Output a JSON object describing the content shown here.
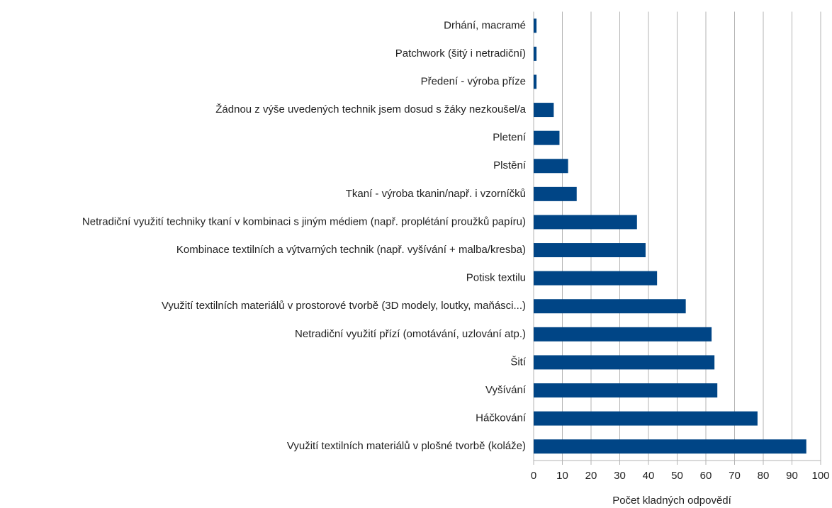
{
  "chart_data": {
    "type": "barh",
    "categories": [
      "Drhání, macramé",
      "Patchwork (šitý i netradiční)",
      "Předení - výroba příze",
      "Žádnou z výše uvedených technik jsem dosud s žáky nezkoušel/a",
      "Pletení",
      "Plstění",
      "Tkaní  - výroba tkanin/např. i vzorníčků",
      "Netradiční využití techniky tkaní v kombinaci s jiným médiem (např. proplétání proužků papíru)",
      "Kombinace textilních a výtvarných technik (např. vyšívání + malba/kresba)",
      "Potisk textilu",
      "Využití textilních materiálů v prostorové tvorbě (3D modely, loutky, maňásci...)",
      "Netradiční využití přízí (omotávání, uzlování atp.)",
      "Šití",
      "Vyšívání",
      "Háčkování",
      "Využití textilních materiálů v plošné tvorbě (koláže)"
    ],
    "values": [
      1,
      1,
      1,
      7,
      9,
      12,
      15,
      36,
      39,
      43,
      53,
      62,
      63,
      64,
      78,
      95
    ],
    "color": "#004586",
    "x_label": "Počet kladných odpovědí",
    "xlim": [
      0,
      100
    ],
    "xticks": [
      0,
      10,
      20,
      30,
      40,
      50,
      60,
      70,
      80,
      90,
      100
    ],
    "grid": true
  }
}
